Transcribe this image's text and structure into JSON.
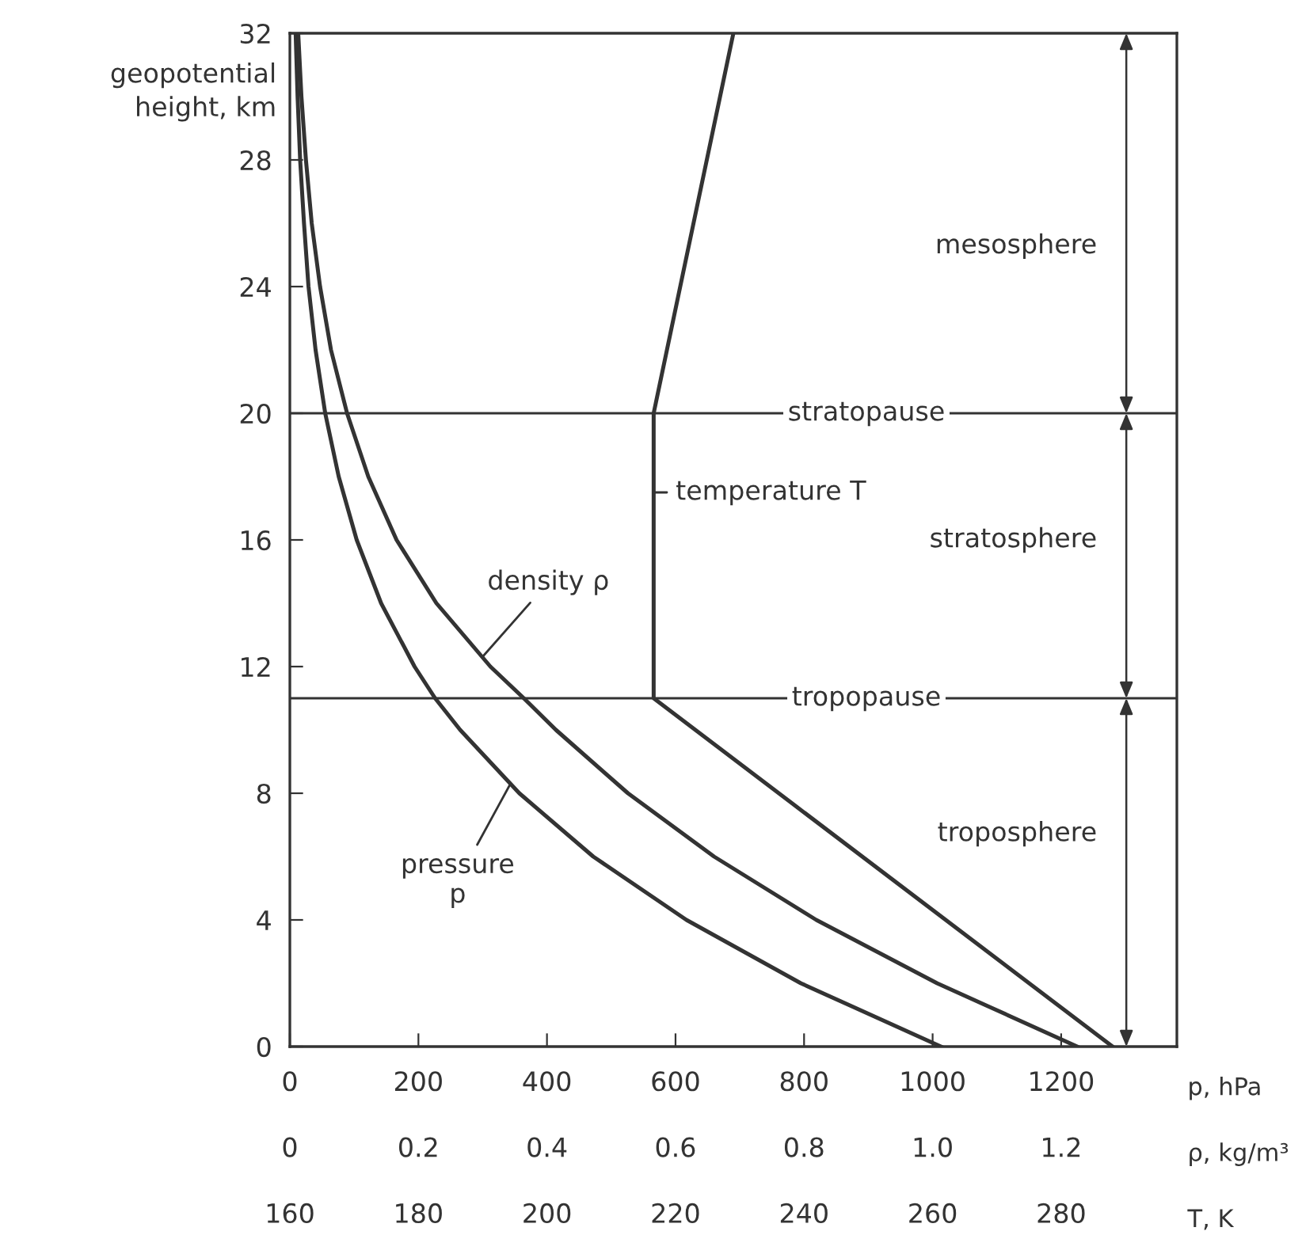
{
  "chart_data": [
    {
      "type": "line",
      "ylabel": "geopotential\nheight, km",
      "xlabel": "p, hPa",
      "x2label": "ρ, kg/m³",
      "xlim": [
        0,
        1380
      ],
      "xticks": [
        0,
        200,
        400,
        600,
        800,
        1000,
        1200
      ],
      "x2lim": [
        0,
        1.38
      ],
      "x2ticks": [
        0,
        0.2,
        0.4,
        0.6,
        0.8,
        {
          "value": 1,
          "label": "1.0"
        },
        1.2
      ],
      "ylim": [
        0,
        32
      ],
      "yticks": [
        0,
        4,
        8,
        12,
        16,
        20,
        24,
        28,
        32
      ],
      "series": [
        {
          "name": "pressure\np",
          "color": "#333333",
          "x": [
            1013,
            795,
            617,
            472,
            357,
            265,
            226,
            194,
            142,
            104,
            76,
            55,
            40,
            29,
            22,
            16,
            12,
            9
          ],
          "values": [
            0,
            2,
            4,
            6,
            8,
            10,
            11,
            12,
            14,
            16,
            18,
            20,
            22,
            24,
            26,
            28,
            30,
            32
          ]
        },
        {
          "name": "density ρ",
          "axis": "x2",
          "color": "#333333",
          "x": [
            1.225,
            1.007,
            0.819,
            0.66,
            0.526,
            0.414,
            0.364,
            0.312,
            0.228,
            0.166,
            0.122,
            0.089,
            0.064,
            0.047,
            0.034,
            0.025,
            0.018,
            0.013
          ],
          "values": [
            0,
            2,
            4,
            6,
            8,
            10,
            11,
            12,
            14,
            16,
            18,
            20,
            22,
            24,
            26,
            28,
            30,
            32
          ]
        }
      ],
      "ref_lines": [
        {
          "axis": "y",
          "value": 20,
          "label": "stratopause"
        },
        {
          "axis": "y",
          "value": 11,
          "label": "tropopause"
        }
      ],
      "annotations": [
        "mesosphere",
        "stratosphere",
        "troposphere"
      ]
    },
    {
      "type": "line",
      "xlabel": "T, K",
      "xlim": [
        160,
        298
      ],
      "xticks": [
        160,
        180,
        200,
        220,
        240,
        260,
        280
      ],
      "ylim": [
        0,
        32
      ],
      "yticks": [
        0,
        4,
        8,
        12,
        16,
        20,
        24,
        28,
        32
      ],
      "tick_labels": "x",
      "series": [
        {
          "name": "temperature T",
          "color": "#333333",
          "x": [
            288,
            216.6,
            216.6,
            229
          ],
          "values": [
            0,
            11,
            20,
            32
          ]
        }
      ]
    }
  ]
}
